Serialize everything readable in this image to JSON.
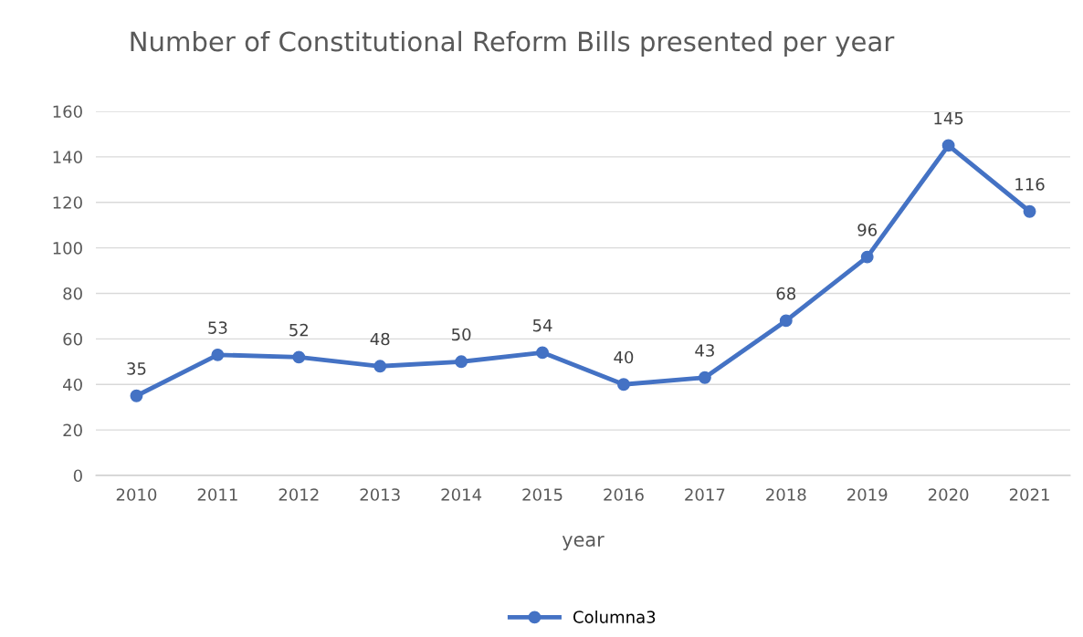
{
  "chart_data": {
    "type": "line",
    "title": "Number of Constitutional Reform Bills presented per year",
    "xlabel": "year",
    "categories": [
      "2010",
      "2011",
      "2012",
      "2013",
      "2014",
      "2015",
      "2016",
      "2017",
      "2018",
      "2019",
      "2020",
      "2021"
    ],
    "series": [
      {
        "name": "Columna3",
        "color": "#4472c4",
        "values": [
          35,
          53,
          52,
          48,
          50,
          54,
          40,
          43,
          68,
          96,
          145,
          116
        ]
      }
    ],
    "ylim": [
      0,
      160
    ],
    "yticks": [
      0,
      20,
      40,
      60,
      80,
      100,
      120,
      140,
      160
    ],
    "grid": "y",
    "legend": "bottom",
    "marker": "circle",
    "line_style": "solid",
    "data_labels": true
  }
}
